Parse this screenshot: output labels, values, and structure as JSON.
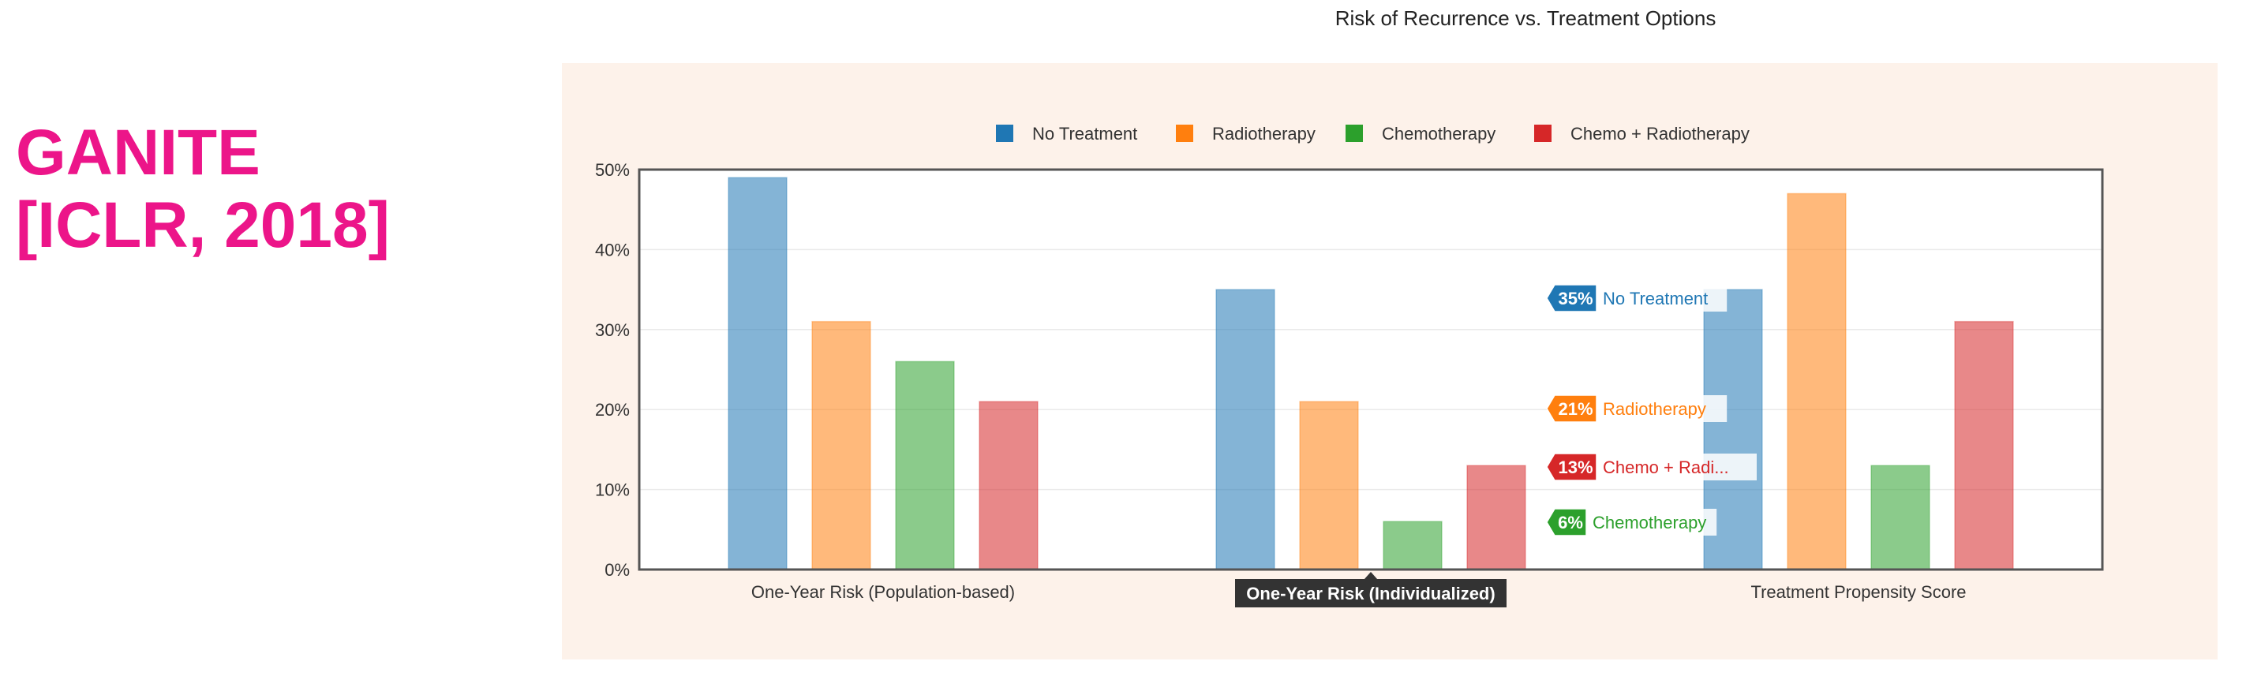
{
  "side_title": {
    "line1": "GANITE",
    "line2": "[ICLR, 2018]"
  },
  "colors": {
    "accent": "#ec1589",
    "panel_bg": "#fdf2ea",
    "tooltip_bg": "#333333"
  },
  "chart_data": {
    "type": "bar",
    "title": "Risk of Recurrence vs. Treatment Options",
    "categories": [
      "One-Year Risk (Population-based)",
      "One-Year Risk (Individualized)",
      "Treatment Propensity Score"
    ],
    "series": [
      {
        "name": "No Treatment",
        "color": "#1f77b4",
        "values": [
          49,
          35,
          35
        ]
      },
      {
        "name": "Radiotherapy",
        "color": "#ff7f0e",
        "values": [
          31,
          21,
          47
        ]
      },
      {
        "name": "Chemotherapy",
        "color": "#2ca02c",
        "values": [
          26,
          6,
          13
        ]
      },
      {
        "name": "Chemo + Radiotherapy",
        "color": "#d62728",
        "values": [
          21,
          13,
          31
        ]
      }
    ],
    "ylim": [
      0,
      50
    ],
    "yticks": [
      "0%",
      "10%",
      "20%",
      "30%",
      "40%",
      "50%"
    ],
    "grid": true,
    "legend": "top-center",
    "hover_category": "One-Year Risk (Individualized)",
    "hover_labels": [
      {
        "value": "35%",
        "text": "No Treatment",
        "color": "#1f77b4"
      },
      {
        "value": "21%",
        "text": "Radiotherapy",
        "color": "#ff7f0e"
      },
      {
        "value": "13%",
        "text": "Chemo + Radi...",
        "color": "#d62728"
      },
      {
        "value": "6%",
        "text": "Chemotherapy",
        "color": "#2ca02c"
      }
    ]
  }
}
